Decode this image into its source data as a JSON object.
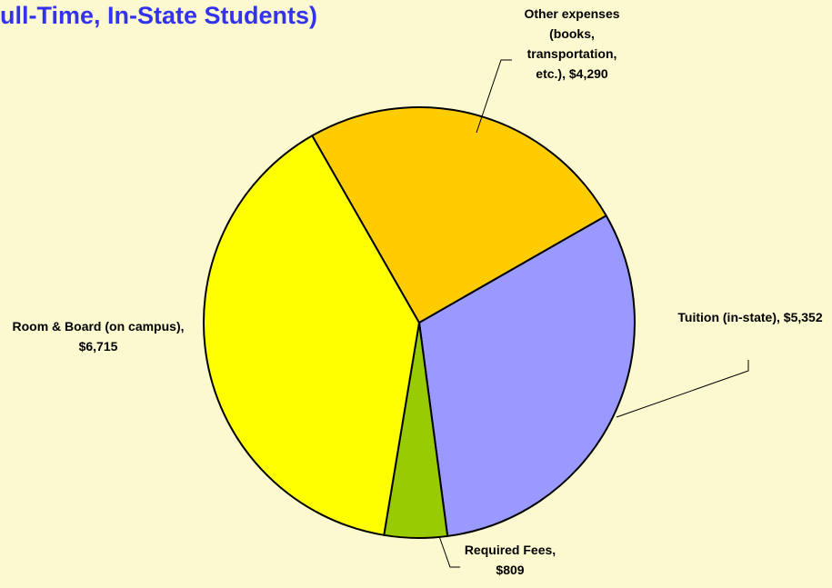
{
  "chart_data": {
    "type": "pie",
    "title": "ull-Time, In-State Students)",
    "categories": [
      "Tuition (in-state),",
      "Required Fees,",
      "Room & Board (on campus),",
      "Other expenses (books, transportation, etc.),"
    ],
    "values": [
      5352,
      809,
      6715,
      4290
    ],
    "value_labels": [
      "$5,352",
      "$809",
      "$6,715",
      "$4,290"
    ],
    "colors": [
      "#9999ff",
      "#99cc00",
      "#ffff00",
      "#ffcc00"
    ]
  }
}
